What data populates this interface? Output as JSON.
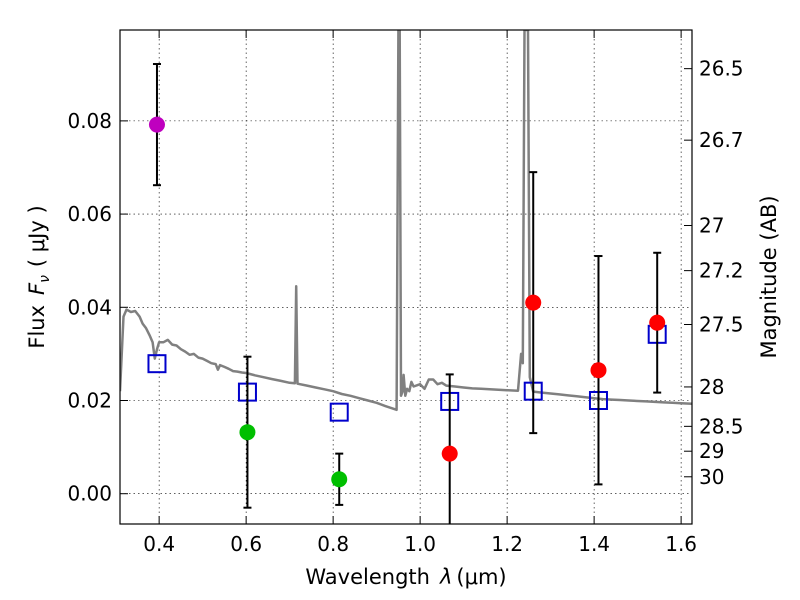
{
  "chart_data": {
    "type": "scatter",
    "xlabel_main": "Wavelength",
    "xlabel_lambda": "λ",
    "xlabel_unit": "(μm)",
    "ylabel_main": "Flux",
    "ylabel_symbol": "F",
    "ylabel_subscript": "ν",
    "ylabel_unit": "( μJy )",
    "y2label": "Magnitude (AB)",
    "xlim": [
      0.31,
      1.625
    ],
    "ylim": [
      -0.0065,
      0.0995
    ],
    "xticks": [
      0.4,
      0.6,
      0.8,
      1.0,
      1.2,
      1.4,
      1.6
    ],
    "xtick_labels": [
      "0.4",
      "0.6",
      "0.8",
      "1.0",
      "1.2",
      "1.4",
      "1.6"
    ],
    "yticks": [
      0.0,
      0.02,
      0.04,
      0.06,
      0.08
    ],
    "ytick_labels": [
      "0.00",
      "0.02",
      "0.04",
      "0.06",
      "0.08"
    ],
    "mag_ticks": [
      {
        "label": "26.5",
        "mag": 26.5
      },
      {
        "label": "26.7",
        "mag": 26.7
      },
      {
        "label": "27",
        "mag": 27.0
      },
      {
        "label": "27.2",
        "mag": 27.2
      },
      {
        "label": "27.5",
        "mag": 27.5
      },
      {
        "label": "28",
        "mag": 28.0
      },
      {
        "label": "28.5",
        "mag": 28.5
      },
      {
        "label": "29",
        "mag": 29.0
      },
      {
        "label": "30",
        "mag": 30.0
      }
    ],
    "grid": true,
    "observed_points": [
      {
        "x": 0.395,
        "y": 0.0792,
        "err": 0.013,
        "color": "#bf00bf"
      },
      {
        "x": 0.603,
        "y": 0.0132,
        "err": 0.0162,
        "color": "#00bf00"
      },
      {
        "x": 0.814,
        "y": 0.0031,
        "err": 0.0055,
        "color": "#00bf00"
      },
      {
        "x": 1.068,
        "y": 0.0086,
        "err": 0.017,
        "color": "#ff0000"
      },
      {
        "x": 1.26,
        "y": 0.041,
        "err": 0.028,
        "color": "#ff0000"
      },
      {
        "x": 1.41,
        "y": 0.0265,
        "err": 0.0245,
        "color": "#ff0000"
      },
      {
        "x": 1.545,
        "y": 0.0367,
        "err": 0.015,
        "color": "#ff0000"
      }
    ],
    "model_points": [
      {
        "x": 0.395,
        "y": 0.0279
      },
      {
        "x": 0.603,
        "y": 0.0218
      },
      {
        "x": 0.814,
        "y": 0.0175
      },
      {
        "x": 1.068,
        "y": 0.0198
      },
      {
        "x": 1.26,
        "y": 0.022
      },
      {
        "x": 1.41,
        "y": 0.02
      },
      {
        "x": 1.545,
        "y": 0.0342
      }
    ],
    "model_marker_color": "#0000cc",
    "errorbar_color": "#000000",
    "sed_color": "#808080",
    "sed_curve": [
      [
        0.31,
        0.022
      ],
      [
        0.318,
        0.038
      ],
      [
        0.325,
        0.0395
      ],
      [
        0.335,
        0.039
      ],
      [
        0.345,
        0.0392
      ],
      [
        0.355,
        0.038
      ],
      [
        0.362,
        0.0365
      ],
      [
        0.37,
        0.0355
      ],
      [
        0.378,
        0.034
      ],
      [
        0.385,
        0.0325
      ],
      [
        0.39,
        0.029
      ],
      [
        0.395,
        0.031
      ],
      [
        0.4,
        0.0325
      ],
      [
        0.41,
        0.0325
      ],
      [
        0.42,
        0.033
      ],
      [
        0.43,
        0.032
      ],
      [
        0.44,
        0.0318
      ],
      [
        0.45,
        0.031
      ],
      [
        0.46,
        0.0305
      ],
      [
        0.47,
        0.0298
      ],
      [
        0.48,
        0.03
      ],
      [
        0.49,
        0.0292
      ],
      [
        0.5,
        0.029
      ],
      [
        0.51,
        0.0285
      ],
      [
        0.52,
        0.028
      ],
      [
        0.53,
        0.0278
      ],
      [
        0.535,
        0.0266
      ],
      [
        0.54,
        0.0276
      ],
      [
        0.55,
        0.0272
      ],
      [
        0.56,
        0.0268
      ],
      [
        0.57,
        0.0263
      ],
      [
        0.58,
        0.0262
      ],
      [
        0.59,
        0.026
      ],
      [
        0.6,
        0.0259
      ],
      [
        0.62,
        0.0254
      ],
      [
        0.64,
        0.025
      ],
      [
        0.66,
        0.0246
      ],
      [
        0.68,
        0.0242
      ],
      [
        0.7,
        0.0238
      ],
      [
        0.712,
        0.0237
      ],
      [
        0.715,
        0.0445
      ],
      [
        0.718,
        0.0236
      ],
      [
        0.74,
        0.0232
      ],
      [
        0.76,
        0.0228
      ],
      [
        0.78,
        0.0224
      ],
      [
        0.8,
        0.022
      ],
      [
        0.82,
        0.0214
      ],
      [
        0.84,
        0.021
      ],
      [
        0.86,
        0.0205
      ],
      [
        0.88,
        0.02
      ],
      [
        0.9,
        0.0195
      ],
      [
        0.92,
        0.0188
      ],
      [
        0.94,
        0.0182
      ],
      [
        0.946,
        0.018
      ],
      [
        0.95,
        0.0995
      ],
      [
        0.953,
        0.0995
      ],
      [
        0.956,
        0.021
      ],
      [
        0.96,
        0.022
      ],
      [
        0.962,
        0.0255
      ],
      [
        0.966,
        0.021
      ],
      [
        0.97,
        0.0225
      ],
      [
        0.975,
        0.022
      ],
      [
        0.98,
        0.024
      ],
      [
        0.985,
        0.023
      ],
      [
        1.0,
        0.0235
      ],
      [
        1.01,
        0.0225
      ],
      [
        1.02,
        0.0245
      ],
      [
        1.03,
        0.0245
      ],
      [
        1.04,
        0.0235
      ],
      [
        1.05,
        0.0238
      ],
      [
        1.06,
        0.0232
      ],
      [
        1.08,
        0.023
      ],
      [
        1.1,
        0.0228
      ],
      [
        1.12,
        0.0226
      ],
      [
        1.14,
        0.0225
      ],
      [
        1.16,
        0.0224
      ],
      [
        1.18,
        0.0223
      ],
      [
        1.2,
        0.0222
      ],
      [
        1.225,
        0.0221
      ],
      [
        1.232,
        0.03
      ],
      [
        1.236,
        0.028
      ],
      [
        1.24,
        0.0995
      ],
      [
        1.248,
        0.0995
      ],
      [
        1.252,
        0.025
      ],
      [
        1.26,
        0.0219
      ],
      [
        1.28,
        0.0217
      ],
      [
        1.3,
        0.0215
      ],
      [
        1.32,
        0.0213
      ],
      [
        1.34,
        0.0211
      ],
      [
        1.36,
        0.0209
      ],
      [
        1.38,
        0.0207
      ],
      [
        1.4,
        0.0205
      ],
      [
        1.42,
        0.0203
      ],
      [
        1.44,
        0.0202
      ],
      [
        1.46,
        0.0201
      ],
      [
        1.48,
        0.02
      ],
      [
        1.5,
        0.0199
      ],
      [
        1.52,
        0.0198
      ],
      [
        1.54,
        0.0197
      ],
      [
        1.56,
        0.0196
      ],
      [
        1.58,
        0.0195
      ],
      [
        1.6,
        0.0194
      ],
      [
        1.625,
        0.0193
      ]
    ]
  }
}
